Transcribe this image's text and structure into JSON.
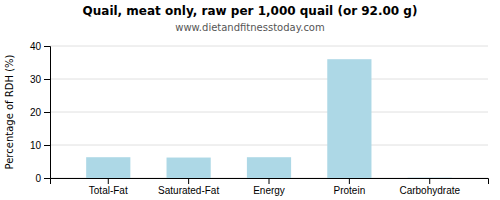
{
  "chart_data": {
    "type": "bar",
    "title": "Quail, meat only, raw per 1,000 quail (or 92.00 g)",
    "subtitle": "www.dietandfitnesstoday.com",
    "categories": [
      "Total-Fat",
      "Saturated-Fat",
      "Energy",
      "Protein",
      "Carbohydrate"
    ],
    "values": [
      6.3,
      6.2,
      6.3,
      36.0,
      0.1
    ],
    "color": "#add8e6",
    "ylabel": "Percentage of RDH (%)",
    "ylim": [
      0,
      40
    ],
    "yticks": [
      0,
      10,
      20,
      30,
      40
    ],
    "grid": true
  }
}
